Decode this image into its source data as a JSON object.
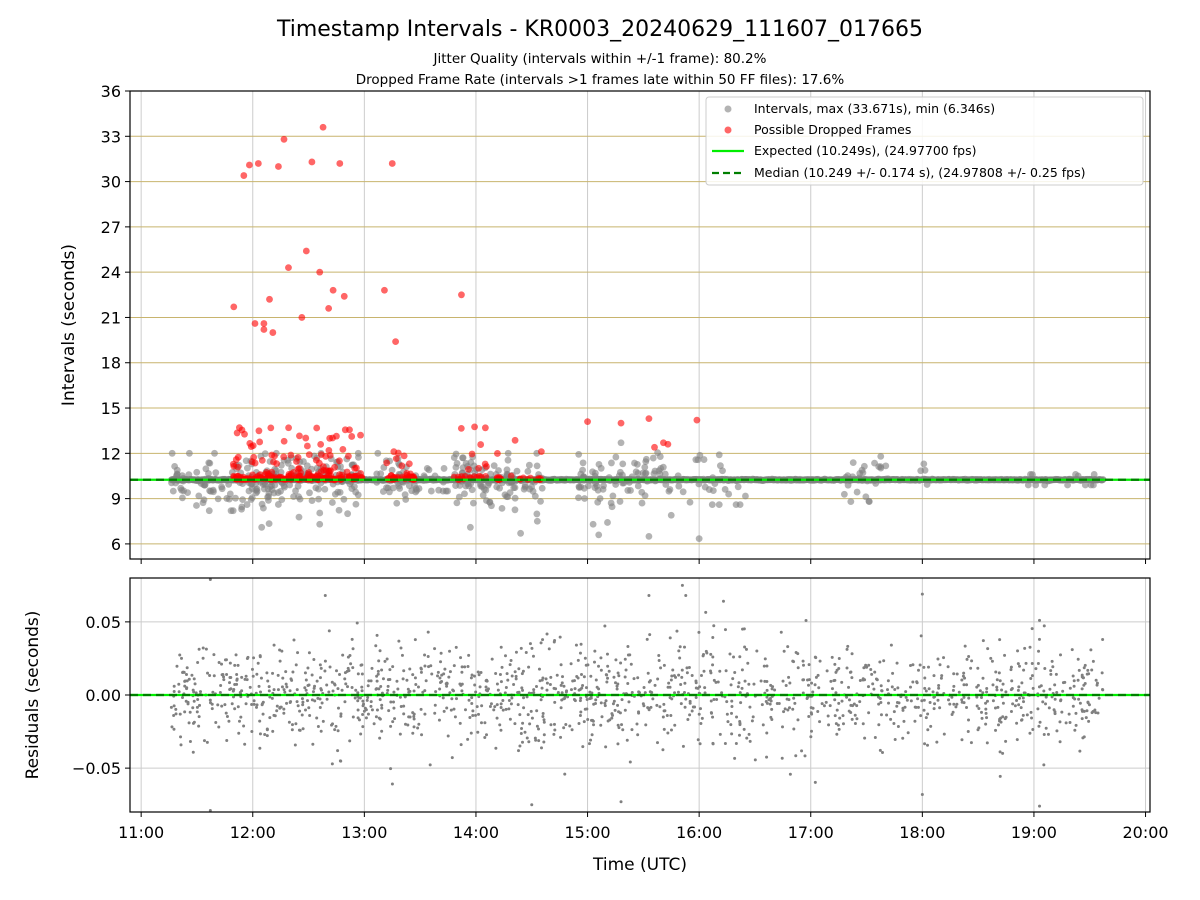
{
  "title": "Timestamp Intervals - KR0003_20240629_111607_017665",
  "subtitle_lines": [
    "Jitter Quality (intervals within +/-1 frame): 80.2%",
    "Dropped Frame Rate (intervals >1 frames late within 50 FF files): 17.6%"
  ],
  "colors": {
    "intervals": "#808080",
    "dropped": "#ff0000",
    "expected": "#00ee00",
    "median": "#007f00",
    "h_grid": "#c8b46e",
    "grid": "#cccccc"
  },
  "chart_data": [
    {
      "type": "scatter",
      "panel": "top",
      "xlabel": "",
      "ylabel": "Intervals (seconds)",
      "x_unit": "hours (UTC)",
      "xlim": [
        10.9,
        20.04
      ],
      "ylim": [
        5,
        36
      ],
      "yticks": [
        6,
        9,
        12,
        15,
        18,
        21,
        24,
        27,
        30,
        33,
        36
      ],
      "ytick_labels": [
        "6",
        "9",
        "12",
        "15",
        "18",
        "21",
        "24",
        "27",
        "30",
        "33",
        "36"
      ],
      "grid": true,
      "legend_position": "top-right",
      "legend": [
        "Intervals, max (33.671s), min (6.346s)",
        "Possible Dropped Frames",
        "Expected (10.249s), (24.97700 fps)",
        "Median (10.249 +/- 0.174 s), (24.97808 +/- 0.25 fps)"
      ],
      "reference_lines": {
        "expected": 10.249,
        "median": 10.249
      },
      "baseline": {
        "value": 10.249,
        "x_start": 11.27,
        "x_end": 19.62
      },
      "series": [
        {
          "name": "Intervals, max (33.671s), min (6.346s)",
          "clusters": [
            {
              "x_range": [
                11.27,
                11.85
              ],
              "y_range": [
                8.2,
                12.0
              ],
              "count": 55
            },
            {
              "x_range": [
                11.85,
                12.95
              ],
              "y_range": [
                7.0,
                12.0
              ],
              "count": 180
            },
            {
              "x_range": [
                13.1,
                13.5
              ],
              "y_range": [
                7.5,
                12.0
              ],
              "count": 45
            },
            {
              "x_range": [
                13.5,
                13.75
              ],
              "y_range": [
                9.5,
                11.0
              ],
              "count": 12
            },
            {
              "x_range": [
                13.8,
                14.6
              ],
              "y_range": [
                6.7,
                12.0
              ],
              "count": 110
            },
            {
              "x_range": [
                14.9,
                15.75
              ],
              "y_range": [
                6.5,
                12.8
              ],
              "count": 85
            },
            {
              "x_range": [
                15.8,
                16.45
              ],
              "y_range": [
                8.6,
                12.0
              ],
              "count": 25
            },
            {
              "x_range": [
                17.3,
                17.7
              ],
              "y_range": [
                8.8,
                11.8
              ],
              "count": 25
            },
            {
              "x_range": [
                17.95,
                18.05
              ],
              "y_range": [
                9.2,
                11.3
              ],
              "count": 4
            },
            {
              "x_range": [
                18.9,
                19.55
              ],
              "y_range": [
                9.9,
                10.6
              ],
              "count": 15
            }
          ],
          "points": [
            [
              12.08,
              7.1
            ],
            [
              12.6,
              7.3
            ],
            [
              12.85,
              8.0
            ],
            [
              13.95,
              7.1
            ],
            [
              14.4,
              6.7
            ],
            [
              14.55,
              7.5
            ],
            [
              15.05,
              7.3
            ],
            [
              15.1,
              6.6
            ],
            [
              15.55,
              6.5
            ],
            [
              15.75,
              7.9
            ],
            [
              16.0,
              6.35
            ],
            [
              16.18,
              11.9
            ],
            [
              16.18,
              8.6
            ],
            [
              15.3,
              12.7
            ]
          ]
        },
        {
          "name": "Possible Dropped Frames",
          "band_clusters": [
            {
              "x_range": [
                11.82,
                12.98
              ],
              "y_range": [
                10.249,
                13.9
              ],
              "count": 220
            },
            {
              "x_range": [
                13.2,
                13.45
              ],
              "y_range": [
                10.249,
                12.4
              ],
              "count": 40
            },
            {
              "x_range": [
                13.8,
                14.6
              ],
              "y_range": [
                10.249,
                13.9
              ],
              "count": 45
            }
          ],
          "points": [
            [
              11.83,
              21.7
            ],
            [
              11.92,
              30.4
            ],
            [
              11.97,
              31.1
            ],
            [
              12.05,
              31.2
            ],
            [
              12.02,
              20.6
            ],
            [
              12.1,
              20.6
            ],
            [
              12.1,
              20.2
            ],
            [
              12.18,
              20.0
            ],
            [
              12.15,
              22.2
            ],
            [
              12.23,
              31.0
            ],
            [
              12.28,
              32.8
            ],
            [
              12.32,
              24.3
            ],
            [
              12.44,
              21.0
            ],
            [
              12.48,
              25.4
            ],
            [
              12.53,
              31.3
            ],
            [
              12.6,
              24.0
            ],
            [
              12.63,
              33.6
            ],
            [
              12.68,
              21.6
            ],
            [
              12.72,
              22.8
            ],
            [
              12.78,
              31.2
            ],
            [
              12.82,
              22.4
            ],
            [
              13.18,
              22.8
            ],
            [
              13.25,
              31.2
            ],
            [
              13.28,
              19.4
            ],
            [
              13.87,
              22.5
            ],
            [
              15.0,
              14.1
            ],
            [
              15.3,
              14.0
            ],
            [
              15.55,
              14.3
            ],
            [
              15.98,
              14.2
            ],
            [
              15.6,
              12.4
            ],
            [
              15.68,
              12.7
            ],
            [
              15.72,
              12.6
            ]
          ]
        },
        {
          "name": "Expected (10.249s), (24.97700 fps)",
          "y": 10.249
        },
        {
          "name": "Median (10.249 +/- 0.174 s), (24.97808 +/- 0.25 fps)",
          "y": 10.249
        }
      ]
    },
    {
      "type": "scatter",
      "panel": "bottom",
      "xlabel": "Time (UTC)",
      "ylabel": "Residuals (seconds)",
      "xlim": [
        10.9,
        20.04
      ],
      "ylim": [
        -0.08,
        0.08
      ],
      "xticks": [
        11,
        12,
        13,
        14,
        15,
        16,
        17,
        18,
        19,
        20
      ],
      "xtick_labels": [
        "11:00",
        "12:00",
        "13:00",
        "14:00",
        "15:00",
        "16:00",
        "17:00",
        "18:00",
        "19:00",
        "20:00"
      ],
      "yticks": [
        -0.05,
        0.0,
        0.05
      ],
      "ytick_labels": [
        "−0.05",
        "0.00",
        "0.05"
      ],
      "grid": true,
      "reference_lines": {
        "expected": 0.0,
        "median": 0.0
      },
      "series": [
        {
          "name": "Residuals",
          "x_range": [
            11.27,
            19.62
          ],
          "count": 1500,
          "spread_sd": 0.018,
          "outliers": [
            [
              11.62,
              0.079
            ],
            [
              11.62,
              -0.079
            ],
            [
              12.65,
              0.068
            ],
            [
              15.55,
              0.068
            ],
            [
              15.85,
              0.075
            ],
            [
              15.88,
              0.068
            ],
            [
              18.0,
              0.069
            ],
            [
              18.0,
              -0.068
            ],
            [
              19.05,
              0.051
            ],
            [
              19.05,
              -0.076
            ],
            [
              14.5,
              -0.075
            ],
            [
              15.3,
              -0.073
            ]
          ]
        }
      ]
    }
  ]
}
